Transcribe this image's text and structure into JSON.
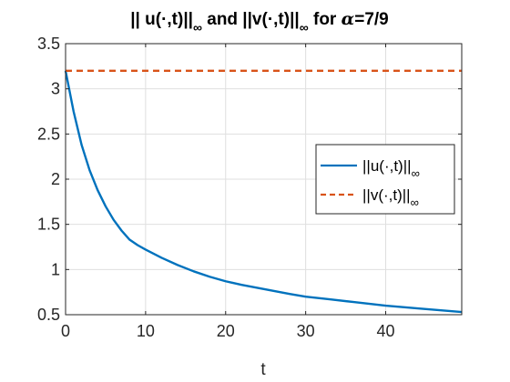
{
  "chart_data": {
    "type": "line",
    "title": {
      "prefix": "|| u(·,t)||",
      "mid": " and ||v(·,t)||",
      "sub": "∞",
      "suffix_before_alpha": " for ",
      "alpha_symbol": "α",
      "alpha_value": "=7/9"
    },
    "xlabel": "t",
    "ylabel": "",
    "xlim": [
      0,
      49.5
    ],
    "ylim": [
      0.5,
      3.5
    ],
    "xticks": [
      0,
      10,
      20,
      30,
      40
    ],
    "xtick_labels": [
      "0",
      "10",
      "20",
      "30",
      "40"
    ],
    "yticks": [
      0.5,
      1,
      1.5,
      2,
      2.5,
      3,
      3.5
    ],
    "ytick_labels": [
      "0.5",
      "1",
      "1.5",
      "2",
      "2.5",
      "3",
      "3.5"
    ],
    "grid": true,
    "legend_position": "right",
    "series": [
      {
        "name_main": "||u(·,t)||",
        "name_sub": "∞",
        "color": "#0072BD",
        "line_style": "solid",
        "x": [
          0,
          1,
          2,
          3,
          4,
          5,
          6,
          7,
          8,
          9,
          10,
          12,
          14,
          16,
          18,
          20,
          22,
          25,
          28,
          30,
          33,
          36,
          40,
          44,
          49.5
        ],
        "y": [
          3.2,
          2.75,
          2.38,
          2.1,
          1.88,
          1.7,
          1.55,
          1.43,
          1.33,
          1.27,
          1.22,
          1.13,
          1.05,
          0.98,
          0.92,
          0.87,
          0.83,
          0.78,
          0.73,
          0.7,
          0.67,
          0.64,
          0.6,
          0.57,
          0.53
        ]
      },
      {
        "name_main": "||v(·,t)||",
        "name_sub": "∞",
        "color": "#D95319",
        "line_style": "dashed",
        "x": [
          0,
          49.5
        ],
        "y": [
          3.2,
          3.2
        ]
      }
    ]
  }
}
